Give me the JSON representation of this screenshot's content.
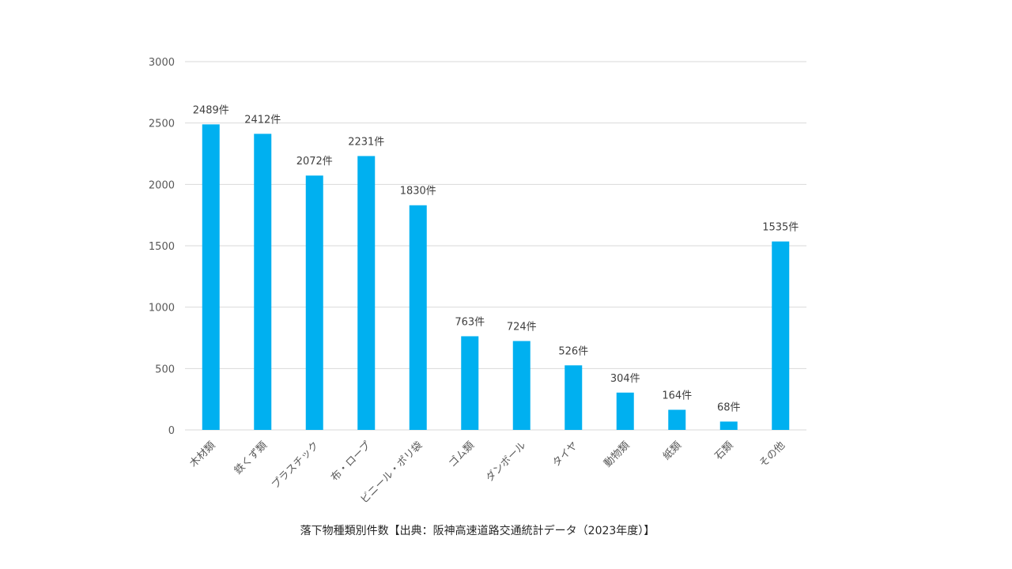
{
  "chart_data": {
    "type": "bar",
    "categories": [
      "木材類",
      "鉄くず類",
      "プラスチック",
      "布・ロープ",
      "ビニール・ポリ袋",
      "ゴム類",
      "ダンボール",
      "タイヤ",
      "動物類",
      "紙類",
      "石類",
      "その他"
    ],
    "values": [
      2489,
      2412,
      2072,
      2231,
      1830,
      763,
      724,
      526,
      304,
      164,
      68,
      1535
    ],
    "data_labels": [
      "2489件",
      "2412件",
      "2072件",
      "2231件",
      "1830件",
      "763件",
      "724件",
      "526件",
      "304件",
      "164件",
      "68件",
      "1535件"
    ],
    "yticks": [
      0,
      500,
      1000,
      1500,
      2000,
      2500,
      3000
    ],
    "ylim": [
      0,
      3000
    ],
    "xlabel": "",
    "ylabel": "",
    "caption": "落下物種類別件数【出典：阪神高速道路交通統計データ（2023年度）】",
    "grid": true,
    "legend": "none",
    "bar_color": "#00b0f0"
  }
}
